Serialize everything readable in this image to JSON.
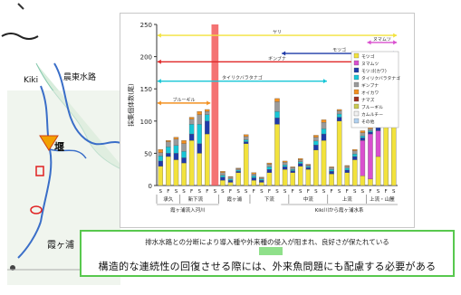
{
  "map": {
    "river_label": "Kiki",
    "route_label": "晨東水路",
    "weir_label": "堰",
    "lake_label": "霞ヶ浦"
  },
  "caption": {
    "line1": "排水水路との分断により導入種や外来種の侵入が阻まれ、良好さが保たれている",
    "line2": "構造的な連続性の回復させる際には、外来魚問題にも配慮する必要がある"
  },
  "chart_data": {
    "type": "bar",
    "ylabel": "採集個体数(尾)",
    "ylim": [
      0,
      250
    ],
    "yticks": [
      0,
      50,
      100,
      150,
      200,
      250
    ],
    "categories": [
      "S",
      "F",
      "S",
      "S",
      "F",
      "S",
      "F",
      "S",
      "S",
      "F",
      "S",
      "S",
      "F",
      "S",
      "F",
      "S",
      "S",
      "F",
      "S",
      "F",
      "S",
      "S",
      "F",
      "S",
      "F",
      "S",
      "S",
      "F",
      "S",
      "F",
      "S"
    ],
    "groups": [
      "承久",
      "新下流",
      "霞ヶ浦",
      "下流",
      "中流",
      "上流",
      "上流・山麓"
    ],
    "group_spans": [
      [
        0,
        2
      ],
      [
        3,
        6
      ],
      [
        8,
        11
      ],
      [
        12,
        16
      ],
      [
        17,
        21
      ],
      [
        22,
        26
      ],
      [
        27,
        30
      ]
    ],
    "section_labels": [
      "霞ヶ浦流入河川",
      "Kiki川から霞ヶ浦水系"
    ],
    "section_spans": [
      [
        0,
        7
      ],
      [
        16,
        30
      ]
    ],
    "legend": [
      "モツゴ",
      "ヌマムツ",
      "モツゴ(カワ)",
      "タイリクバラタナゴ",
      "ギンブナ",
      "オイカワ",
      "ナマズ",
      "ブルーギル",
      "カムルチー",
      "その他"
    ],
    "colors": [
      "#f2e23c",
      "#d94fcf",
      "#1e3aa8",
      "#17c6d6",
      "#9a9a9a",
      "#f29020",
      "#a03020",
      "#c8c850",
      "#f0f0f0",
      "#b0d0f0"
    ],
    "series": [
      {
        "name": "モツゴ",
        "values": [
          30,
          45,
          40,
          35,
          70,
          50,
          80,
          0,
          8,
          5,
          20,
          65,
          8,
          5,
          20,
          95,
          25,
          20,
          30,
          25,
          55,
          70,
          18,
          100,
          20,
          40,
          15,
          10,
          45,
          130,
          125
        ]
      },
      {
        "name": "ヌマムツ",
        "values": [
          0,
          0,
          0,
          0,
          0,
          0,
          0,
          0,
          0,
          0,
          0,
          0,
          0,
          0,
          0,
          0,
          0,
          0,
          0,
          0,
          0,
          0,
          0,
          0,
          0,
          0,
          55,
          70,
          40,
          0,
          60
        ]
      },
      {
        "name": "モツゴ(カワ)",
        "values": [
          8,
          5,
          10,
          8,
          10,
          15,
          20,
          0,
          5,
          3,
          2,
          3,
          4,
          3,
          5,
          10,
          4,
          3,
          4,
          3,
          8,
          10,
          4,
          6,
          4,
          5,
          4,
          3,
          6,
          5,
          6
        ]
      },
      {
        "name": "タイリクバラタナゴ",
        "values": [
          8,
          10,
          12,
          10,
          15,
          30,
          10,
          0,
          3,
          2,
          2,
          3,
          3,
          2,
          4,
          10,
          3,
          2,
          3,
          2,
          6,
          8,
          3,
          5,
          3,
          4,
          3,
          2,
          4,
          4,
          5
        ]
      },
      {
        "name": "ギンブナ",
        "values": [
          5,
          8,
          10,
          12,
          8,
          15,
          5,
          0,
          4,
          3,
          2,
          5,
          3,
          2,
          4,
          15,
          4,
          3,
          3,
          2,
          6,
          10,
          3,
          5,
          3,
          5,
          5,
          3,
          4,
          6,
          8
        ]
      },
      {
        "name": "オイカワ",
        "values": [
          5,
          2,
          3,
          5,
          3,
          5,
          3,
          0,
          2,
          1,
          1,
          3,
          2,
          1,
          2,
          5,
          2,
          1,
          2,
          1,
          3,
          4,
          1,
          2,
          1,
          2,
          3,
          2,
          3,
          3,
          2
        ]
      }
    ],
    "bands": [
      {
        "label": "ヤリ",
        "start": 0,
        "end": 30,
        "y": 233,
        "color": "#f2e23c"
      },
      {
        "label": "ヌマムツ",
        "start": 27,
        "end": 30,
        "y": 222,
        "color": "#d94fcf"
      },
      {
        "label": "モツゴ",
        "start": 16,
        "end": 30,
        "y": 205,
        "color": "#1e3aa8"
      },
      {
        "label": "ギンブナ",
        "start": 0,
        "end": 30,
        "y": 192,
        "color": "#e02828"
      },
      {
        "label": "タイリクバラタナゴ",
        "start": 0,
        "end": 21,
        "y": 162,
        "color": "#17c6d6"
      },
      {
        "label": "ブルーギル",
        "start": 0,
        "end": 6,
        "y": 128,
        "color": "#f29020"
      }
    ],
    "highlight_category_index": 7
  }
}
